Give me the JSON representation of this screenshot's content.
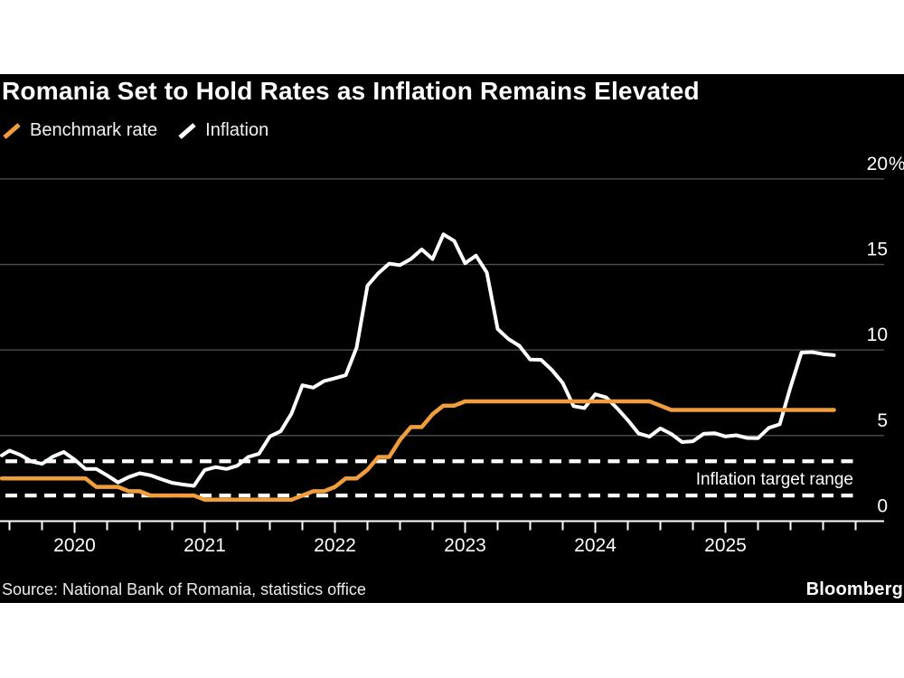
{
  "header": {
    "title": "Romania Set to Hold Rates as Inflation Remains Elevated",
    "legend": [
      {
        "label": "Benchmark rate",
        "color": "#f19d3b"
      },
      {
        "label": "Inflation",
        "color": "#ffffff"
      }
    ]
  },
  "annotation": {
    "target_range_label": "Inflation target range"
  },
  "footer": {
    "source": "Source: National Bank of Romania, statistics office",
    "brand": "Bloomberg"
  },
  "chart_data": {
    "type": "line",
    "unit": "%",
    "start_month": "2019-06",
    "frequency": "monthly",
    "ylim": [
      0,
      20
    ],
    "grid": true,
    "y_ticks": [
      {
        "value": 20,
        "label": "20%"
      },
      {
        "value": 15,
        "label": "15"
      },
      {
        "value": 10,
        "label": "10"
      },
      {
        "value": 5,
        "label": "5"
      },
      {
        "value": 0,
        "label": "0"
      }
    ],
    "x_ticks": [
      {
        "year": 2020,
        "label": "2020"
      },
      {
        "year": 2021,
        "label": "2021"
      },
      {
        "year": 2022,
        "label": "2022"
      },
      {
        "year": 2023,
        "label": "2023"
      },
      {
        "year": 2024,
        "label": "2024"
      },
      {
        "year": 2025,
        "label": "2025"
      }
    ],
    "x_minor_tick_interval_months": 3,
    "target_range": [
      1.5,
      3.5
    ],
    "series": [
      {
        "name": "Inflation",
        "color": "#ffffff",
        "values": [
          3.84,
          4.12,
          3.87,
          3.49,
          3.35,
          3.77,
          4.04,
          3.6,
          3.05,
          3.05,
          2.68,
          2.26,
          2.58,
          2.8,
          2.68,
          2.45,
          2.24,
          2.14,
          2.06,
          2.99,
          3.16,
          3.05,
          3.24,
          3.75,
          3.94,
          4.95,
          5.25,
          6.29,
          7.94,
          7.8,
          8.19,
          8.35,
          8.53,
          10.15,
          13.76,
          14.49,
          15.05,
          14.96,
          15.32,
          15.88,
          15.32,
          16.76,
          16.37,
          15.07,
          15.52,
          14.53,
          11.23,
          10.64,
          10.25,
          9.44,
          9.43,
          8.83,
          8.07,
          6.72,
          6.61,
          7.41,
          7.23,
          6.61,
          5.9,
          5.12,
          4.94,
          5.42,
          5.1,
          4.62,
          4.67,
          5.11,
          5.14,
          4.95,
          5.02,
          4.86,
          4.85,
          5.45,
          5.66,
          7.84,
          9.85,
          9.88,
          9.76,
          9.7
        ]
      },
      {
        "name": "Benchmark rate",
        "color": "#f19d3b",
        "values": [
          2.5,
          2.5,
          2.5,
          2.5,
          2.5,
          2.5,
          2.5,
          2.5,
          2.5,
          2.0,
          2.0,
          2.0,
          1.75,
          1.75,
          1.5,
          1.5,
          1.5,
          1.5,
          1.5,
          1.25,
          1.25,
          1.25,
          1.25,
          1.25,
          1.25,
          1.25,
          1.25,
          1.25,
          1.5,
          1.75,
          1.75,
          2.0,
          2.5,
          2.5,
          3.0,
          3.75,
          3.75,
          4.75,
          5.5,
          5.5,
          6.25,
          6.75,
          6.75,
          7.0,
          7.0,
          7.0,
          7.0,
          7.0,
          7.0,
          7.0,
          7.0,
          7.0,
          7.0,
          7.0,
          7.0,
          7.0,
          7.0,
          7.0,
          7.0,
          7.0,
          7.0,
          6.75,
          6.5,
          6.5,
          6.5,
          6.5,
          6.5,
          6.5,
          6.5,
          6.5,
          6.5,
          6.5,
          6.5,
          6.5,
          6.5,
          6.5,
          6.5,
          6.5
        ]
      }
    ]
  }
}
